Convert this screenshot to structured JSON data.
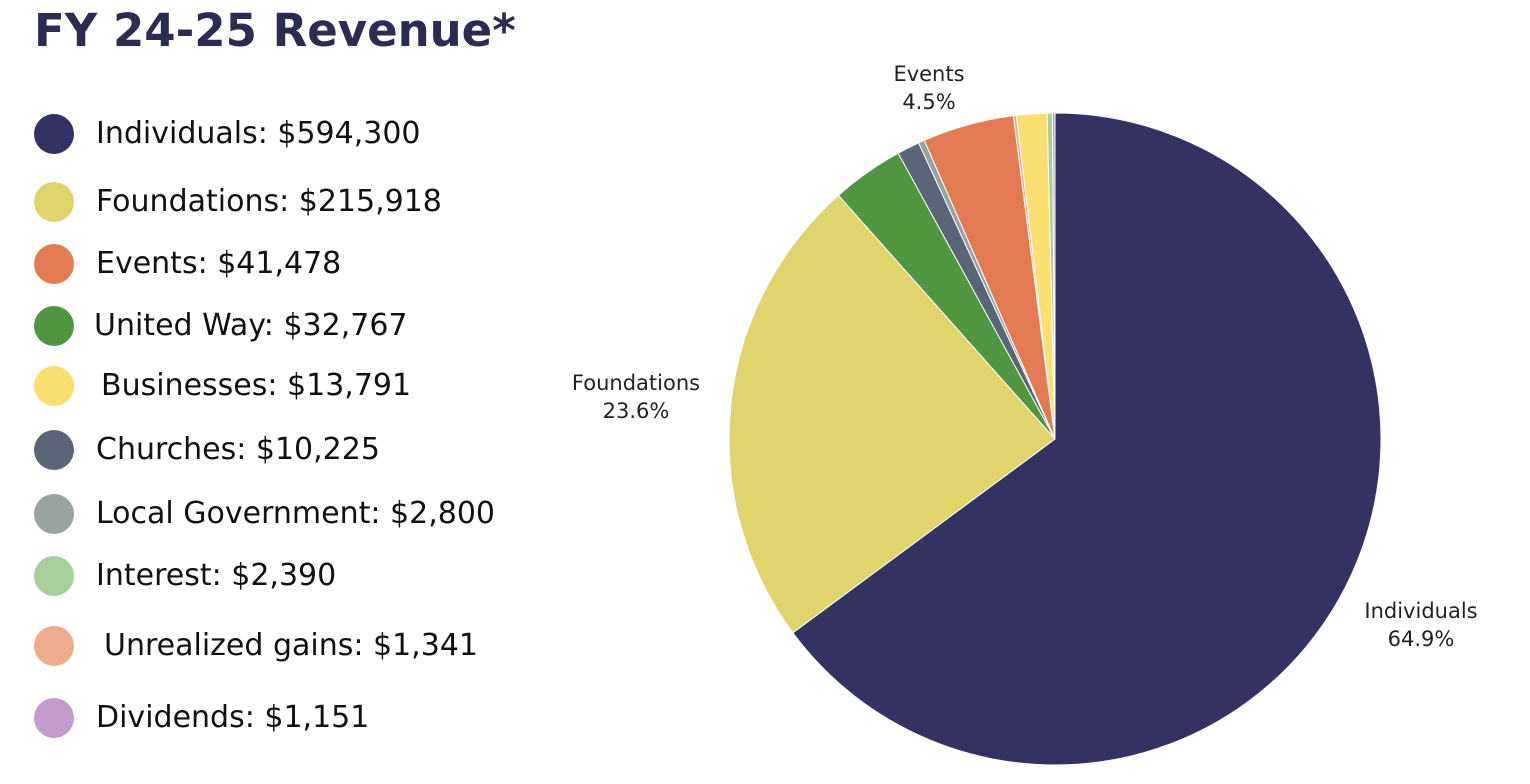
{
  "chart_data": {
    "type": "pie",
    "title": "FY 24-25 Revenue*",
    "slices": [
      {
        "name": "Individuals",
        "value": 594300,
        "legend_label": "Individuals: $594,300",
        "color": "#333262",
        "label": "Individuals",
        "pct": "64.9%"
      },
      {
        "name": "Foundations",
        "value": 215918,
        "legend_label": "Foundations: $215,918",
        "color": "#e0d46d",
        "label": "Foundations",
        "pct": "23.6%"
      },
      {
        "name": "United Way",
        "value": 32767,
        "legend_label": "United Way: $32,767",
        "color": "#519641",
        "label": "",
        "pct": ""
      },
      {
        "name": "Churches",
        "value": 10225,
        "legend_label": "Churches: $10,225",
        "color": "#5a6678",
        "label": "",
        "pct": ""
      },
      {
        "name": "Local Government",
        "value": 2800,
        "legend_label": "Local Government: $2,800",
        "color": "#99a3a1",
        "label": "",
        "pct": ""
      },
      {
        "name": "Events",
        "value": 41478,
        "legend_label": "Events: $41,478",
        "color": "#e47a52",
        "label": "Events",
        "pct": "4.5%"
      },
      {
        "name": "Unrealized gains",
        "value": 1341,
        "legend_label": "Unrealized gains: $1,341",
        "color": "#f0ab8f",
        "label": "",
        "pct": ""
      },
      {
        "name": "Businesses",
        "value": 13791,
        "legend_label": "Businesses: $13,791",
        "color": "#f9de70",
        "label": "",
        "pct": ""
      },
      {
        "name": "Interest",
        "value": 2390,
        "legend_label": "Interest: $2,390",
        "color": "#a6cf9a",
        "label": "",
        "pct": ""
      },
      {
        "name": "Dividends",
        "value": 1151,
        "legend_label": "Dividends: $1,151",
        "color": "#c29bcc",
        "label": "",
        "pct": ""
      }
    ],
    "legend": {
      "placement": "left",
      "order": [
        "Individuals",
        "Foundations",
        "Events",
        "United Way",
        "Businesses",
        "Churches",
        "Local Government",
        "Interest",
        "Unrealized gains",
        "Dividends"
      ]
    }
  }
}
